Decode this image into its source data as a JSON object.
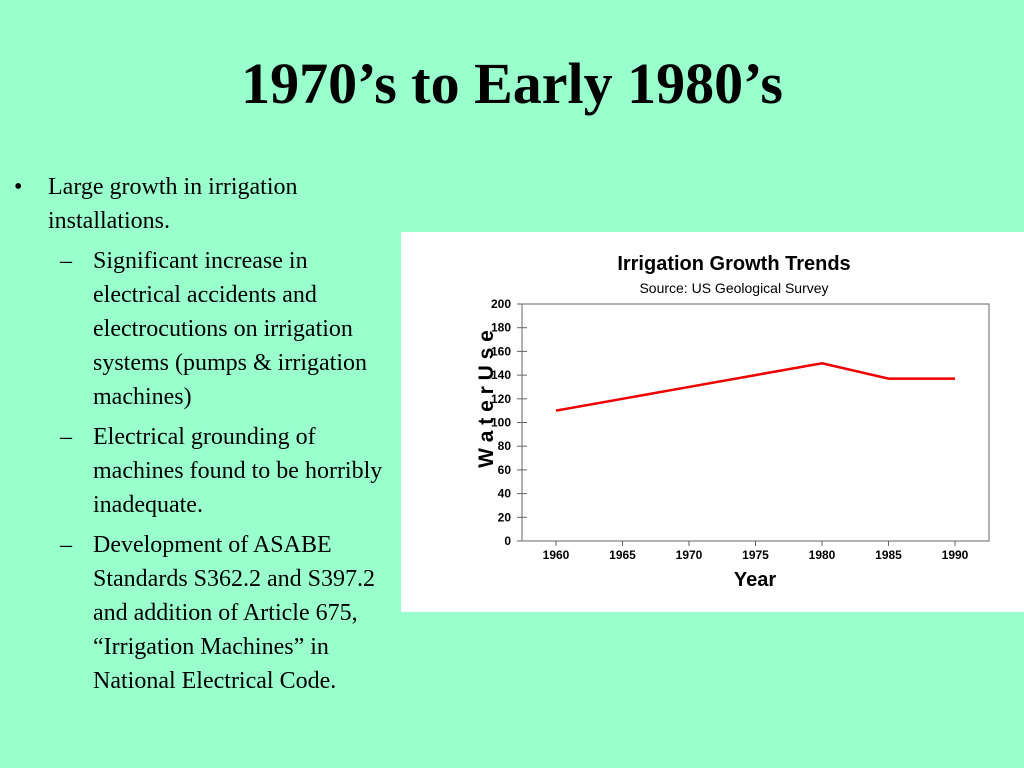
{
  "slide": {
    "title": "1970’s to Early 1980’s",
    "bullets": [
      {
        "text": "Large growth in irrigation installations.",
        "sub": [
          "Significant increase in electrical accidents and electrocutions on irrigation systems (pumps & irrigation machines)",
          "Electrical grounding of machines found to be horribly inadequate.",
          "Development of ASABE Standards S362.2 and S397.2 and addition of Article 675, “Irrigation Machines” in National Electrical Code."
        ]
      }
    ],
    "bullet_glyph": "•",
    "sub_glyph": "–"
  },
  "chart_data": {
    "type": "line",
    "title": "Irrigation Growth Trends",
    "subtitle": "Source: US Geological Survey",
    "xlabel": "Year",
    "ylabel": "W a t e r  U s e",
    "categories": [
      "1960",
      "1965",
      "1970",
      "1975",
      "1980",
      "1985",
      "1990"
    ],
    "x": [
      1960,
      1965,
      1970,
      1975,
      1980,
      1985,
      1990
    ],
    "yticks": [
      0,
      20,
      40,
      60,
      80,
      100,
      120,
      140,
      160,
      180,
      200
    ],
    "ylim": [
      0,
      200
    ],
    "series": [
      {
        "color": "#ee0000",
        "values": [
          110,
          120,
          130,
          140,
          150,
          137,
          137
        ]
      }
    ],
    "grid": false,
    "legend": "none"
  }
}
